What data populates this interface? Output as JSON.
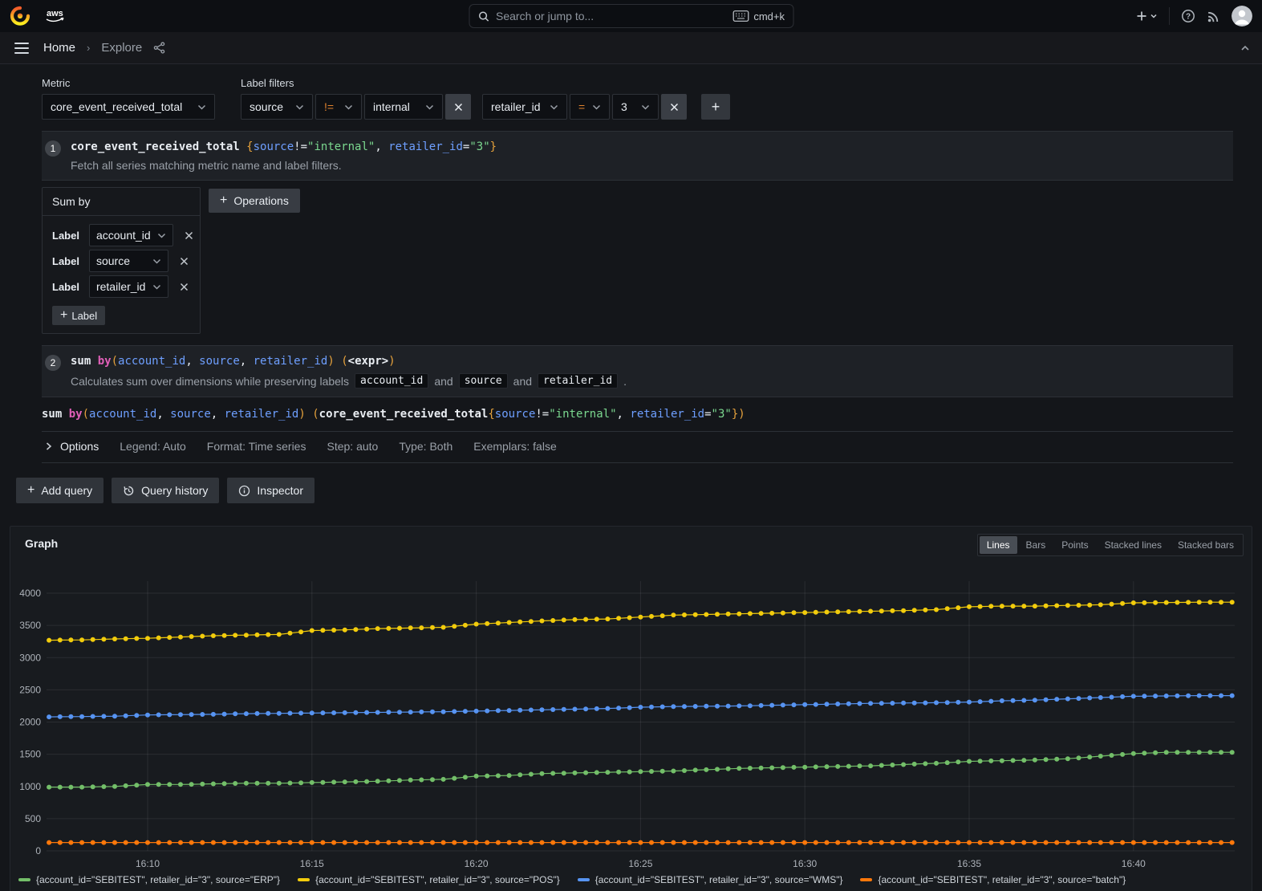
{
  "topbar": {
    "search_placeholder": "Search or jump to...",
    "search_shortcut": "cmd+k",
    "aws_text": "aws"
  },
  "breadcrumb": {
    "home": "Home",
    "separator": "›",
    "current": "Explore"
  },
  "query_builder": {
    "metric_label": "Metric",
    "metric_value": "core_event_received_total",
    "label_filters_label": "Label filters",
    "filters": [
      {
        "label": "source",
        "op": "!=",
        "value": "internal"
      },
      {
        "label": "retailer_id",
        "op": "=",
        "value": "3"
      }
    ],
    "explain1": {
      "step": "1",
      "code_tokens": [
        [
          "core_event_received_total ",
          "fn"
        ],
        [
          "{",
          "brace"
        ],
        [
          "source",
          "lbl"
        ],
        [
          "!=",
          "pn"
        ],
        [
          "\"internal\"",
          "str"
        ],
        [
          ", ",
          "pn"
        ],
        [
          "retailer_id",
          "lbl"
        ],
        [
          "=",
          "pn"
        ],
        [
          "\"3\"",
          "str"
        ],
        [
          "}",
          "brace"
        ]
      ],
      "desc": "Fetch all series matching metric name and label filters."
    },
    "sum_by": {
      "title": "Sum by",
      "row_label": "Label",
      "labels": [
        "account_id",
        "source",
        "retailer_id"
      ],
      "add_label_button": "Label"
    },
    "operations_button": "Operations",
    "explain2": {
      "step": "2",
      "code_tokens": [
        [
          "sum ",
          "fn"
        ],
        [
          "by",
          "kw"
        ],
        [
          "(",
          "brace"
        ],
        [
          "account_id",
          "lbl"
        ],
        [
          ", ",
          "pn"
        ],
        [
          "source",
          "lbl"
        ],
        [
          ", ",
          "pn"
        ],
        [
          "retailer_id",
          "lbl"
        ],
        [
          ")",
          "brace"
        ],
        [
          " ",
          "pn"
        ],
        [
          "(",
          "brace"
        ],
        [
          "<expr>",
          "fn"
        ],
        [
          ")",
          "brace"
        ]
      ],
      "desc_prefix": "Calculates sum over dimensions while preserving labels",
      "chips": [
        "account_id",
        "source",
        "retailer_id"
      ],
      "and_word": "and",
      "suffix": "."
    },
    "raw_query_tokens": [
      [
        "sum ",
        "fn"
      ],
      [
        "by",
        "kw"
      ],
      [
        "(",
        "brace"
      ],
      [
        "account_id",
        "lbl"
      ],
      [
        ", ",
        "pn"
      ],
      [
        "source",
        "lbl"
      ],
      [
        ", ",
        "pn"
      ],
      [
        "retailer_id",
        "lbl"
      ],
      [
        ")",
        "brace"
      ],
      [
        " ",
        "pn"
      ],
      [
        "(",
        "brace"
      ],
      [
        "core_event_received_total",
        "fn"
      ],
      [
        "{",
        "brace"
      ],
      [
        "source",
        "lbl"
      ],
      [
        "!=",
        "pn"
      ],
      [
        "\"internal\"",
        "str"
      ],
      [
        ", ",
        "pn"
      ],
      [
        "retailer_id",
        "lbl"
      ],
      [
        "=",
        "pn"
      ],
      [
        "\"3\"",
        "str"
      ],
      [
        "}",
        "brace"
      ],
      [
        ")",
        "brace"
      ]
    ],
    "options_row": {
      "title": "Options",
      "stats": [
        "Legend: Auto",
        "Format: Time series",
        "Step: auto",
        "Type: Both",
        "Exemplars: false"
      ]
    },
    "actions": {
      "add_query": "Add query",
      "query_history": "Query history",
      "inspector": "Inspector"
    }
  },
  "panel": {
    "title": "Graph",
    "modes": [
      "Lines",
      "Bars",
      "Points",
      "Stacked lines",
      "Stacked bars"
    ],
    "active_mode": "Lines"
  },
  "chart_data": {
    "type": "line",
    "title": "Graph",
    "legend_position": "bottom",
    "grid": true,
    "y_ticks": [
      0,
      500,
      1000,
      1500,
      2000,
      2500,
      3000,
      3500,
      4000
    ],
    "y_domain": [
      0,
      4000
    ],
    "x_ticks": [
      "16:10",
      "16:15",
      "16:20",
      "16:25",
      "16:30",
      "16:35",
      "16:40"
    ],
    "x_tick_minutes": [
      10,
      15,
      20,
      25,
      30,
      35,
      40
    ],
    "minute_start": 7,
    "minute_end": 43.33,
    "point_interval_minutes": 0.33333,
    "series": [
      {
        "name": "{account_id=\"SEBITEST\", retailer_id=\"3\", source=\"ERP\"}",
        "color": "#73BF69",
        "values": [
          990,
          990,
          1000,
          1030,
          1030,
          1040,
          1050,
          1050,
          1060,
          1070,
          1080,
          1100,
          1110,
          1160,
          1170,
          1200,
          1210,
          1220,
          1230,
          1240,
          1260,
          1280,
          1290,
          1300,
          1310,
          1320,
          1340,
          1360,
          1390,
          1400,
          1410,
          1430,
          1470,
          1510,
          1530,
          1530,
          1530
        ]
      },
      {
        "name": "{account_id=\"SEBITEST\", retailer_id=\"3\", source=\"POS\"}",
        "color": "#F2CC0C",
        "values": [
          3270,
          3275,
          3290,
          3300,
          3320,
          3340,
          3350,
          3360,
          3420,
          3430,
          3450,
          3460,
          3470,
          3520,
          3545,
          3570,
          3590,
          3600,
          3630,
          3660,
          3670,
          3680,
          3690,
          3700,
          3710,
          3720,
          3730,
          3745,
          3790,
          3800,
          3800,
          3810,
          3820,
          3850,
          3855,
          3860,
          3860
        ]
      },
      {
        "name": "{account_id=\"SEBITEST\", retailer_id=\"3\", source=\"WMS\"}",
        "color": "#5794F2",
        "values": [
          2080,
          2085,
          2090,
          2110,
          2115,
          2120,
          2130,
          2135,
          2140,
          2145,
          2150,
          2155,
          2160,
          2170,
          2180,
          2190,
          2200,
          2210,
          2230,
          2240,
          2245,
          2250,
          2260,
          2270,
          2280,
          2290,
          2295,
          2300,
          2310,
          2330,
          2340,
          2360,
          2380,
          2400,
          2405,
          2410,
          2410
        ]
      },
      {
        "name": "{account_id=\"SEBITEST\", retailer_id=\"3\", source=\"batch\"}",
        "color": "#FF780A",
        "values": [
          130,
          130,
          130,
          130,
          130,
          130,
          130,
          130,
          130,
          130,
          130,
          130,
          130,
          130,
          130,
          130,
          130,
          130,
          130,
          130,
          130,
          130,
          130,
          130,
          130,
          130,
          130,
          130,
          130,
          130,
          130,
          130,
          130,
          130,
          130,
          130,
          130
        ]
      }
    ]
  }
}
